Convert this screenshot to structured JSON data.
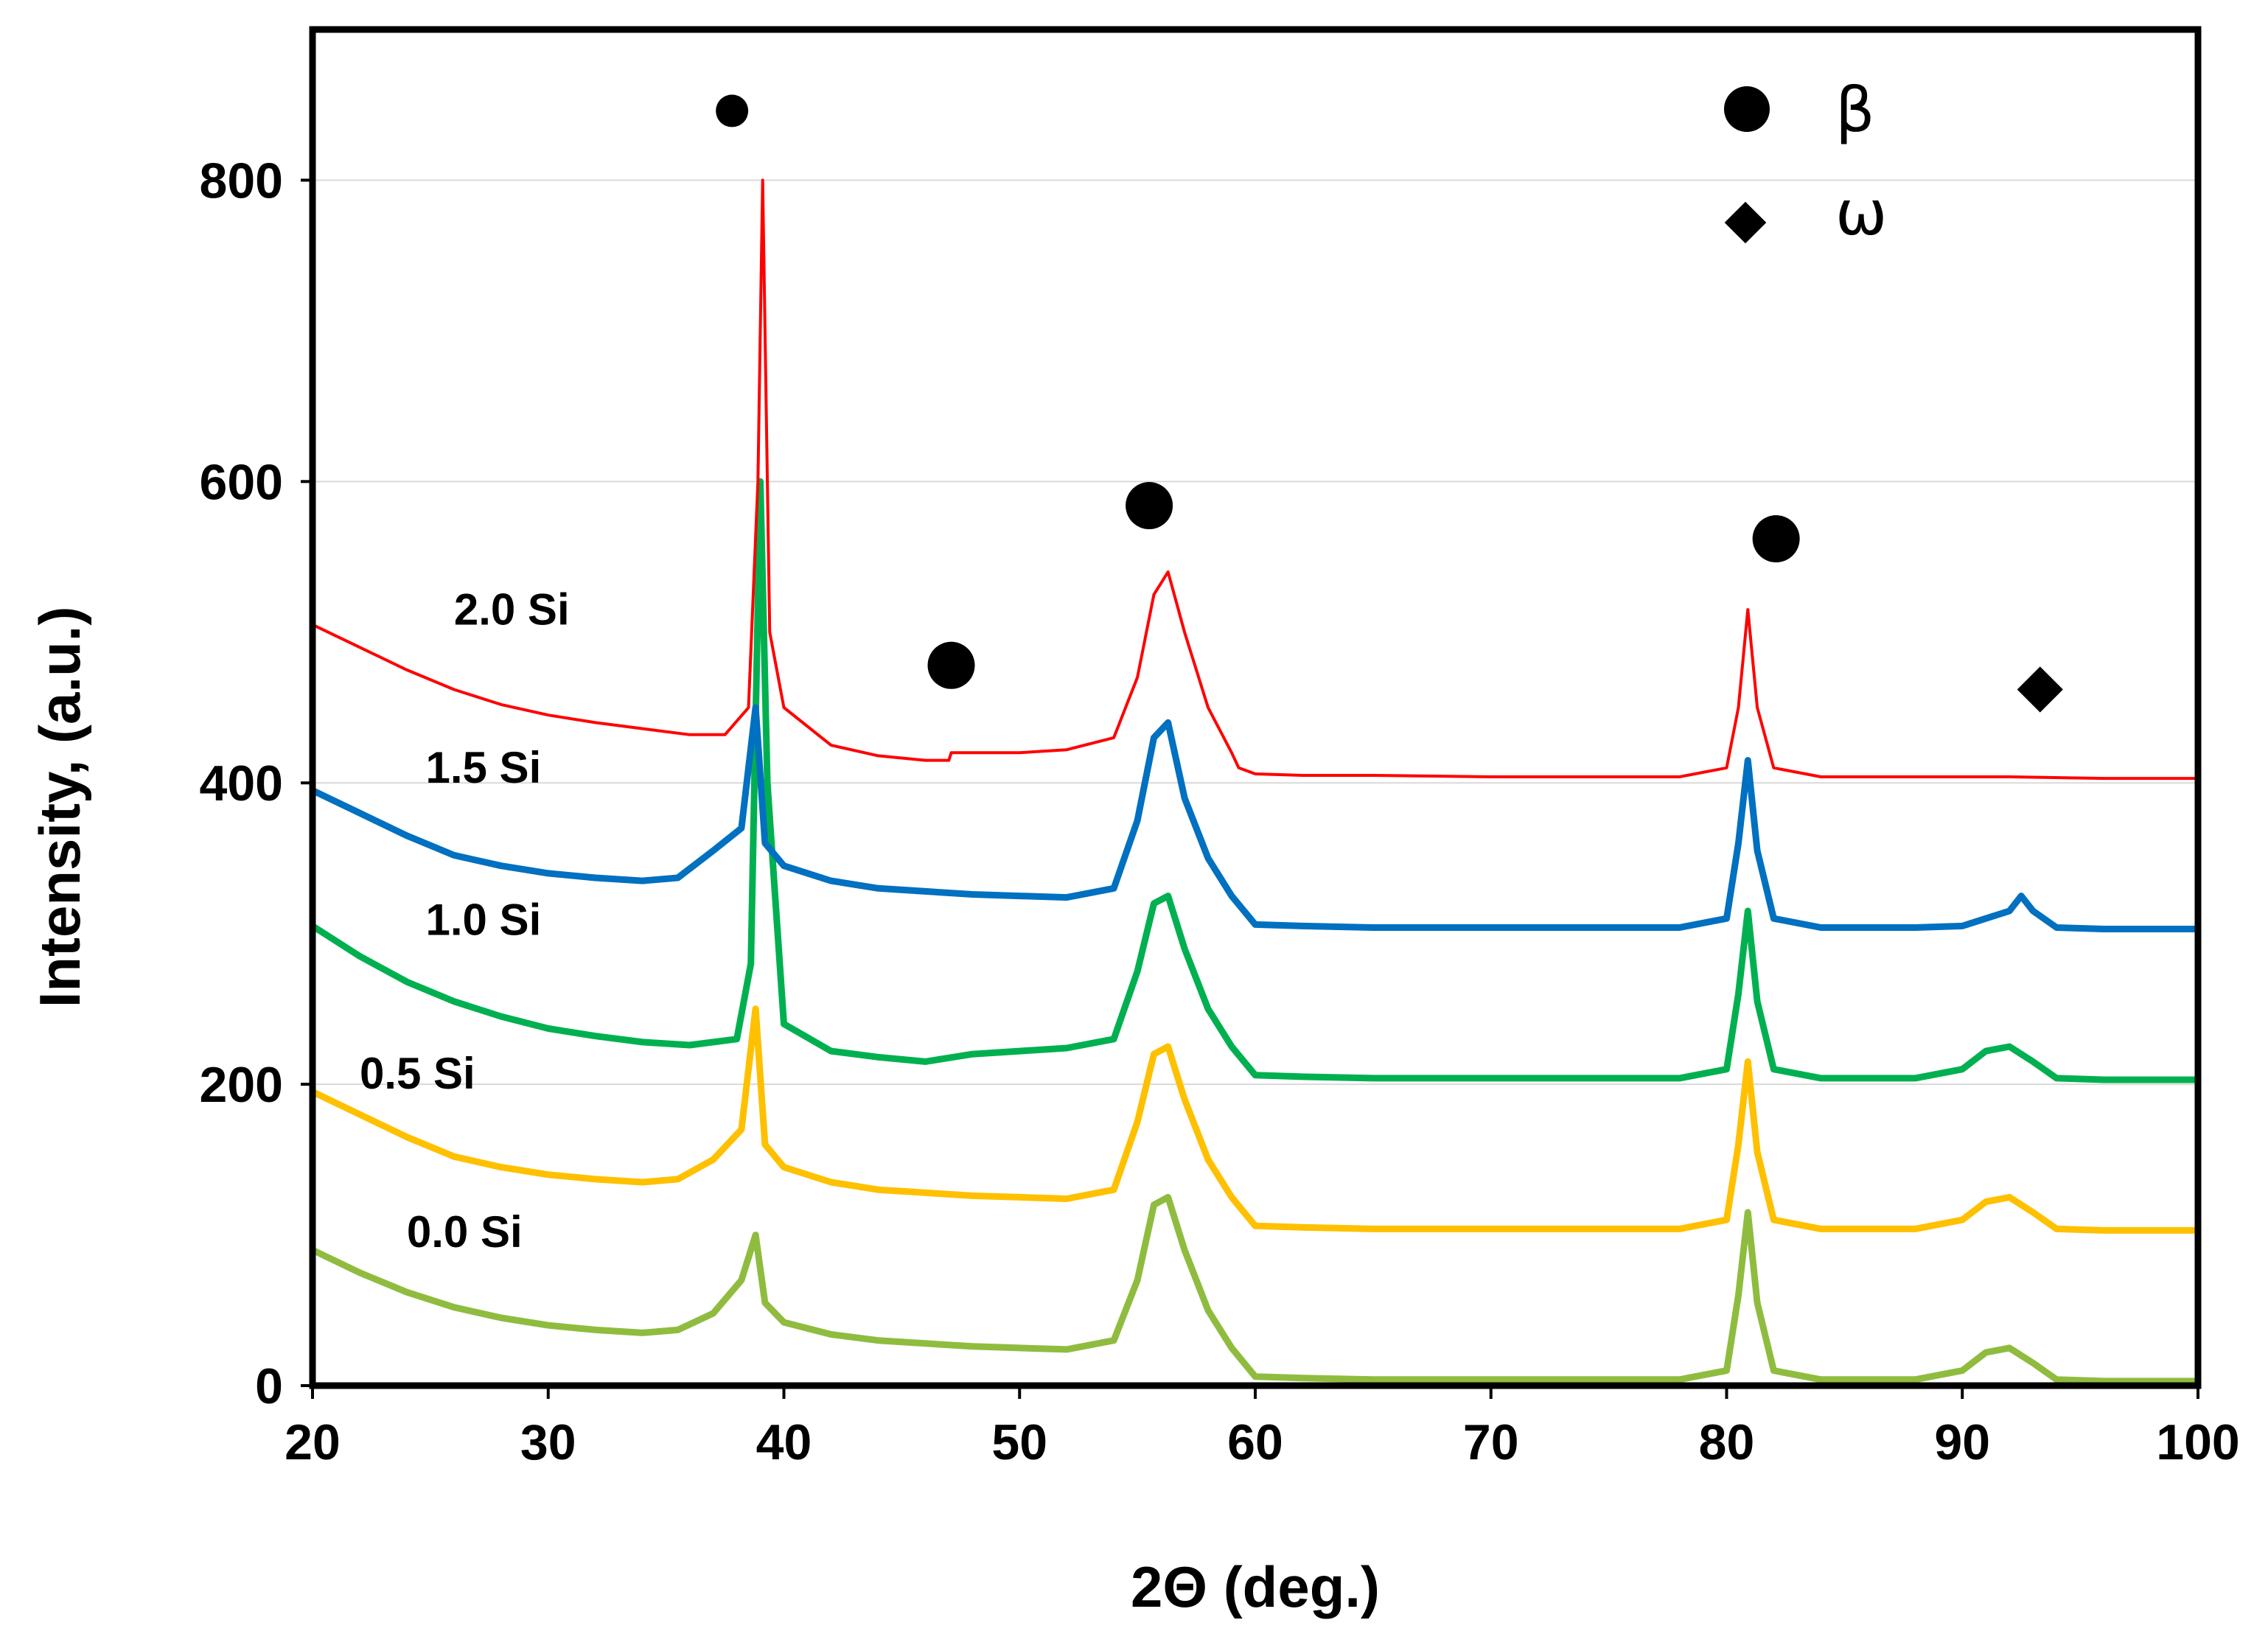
{
  "chart_data": {
    "type": "line",
    "title": "",
    "xlabel": "2Θ (deg.)",
    "ylabel": "Intensity, (a.u.)",
    "xlim": [
      20,
      100
    ],
    "ylim": [
      0,
      900
    ],
    "xticks": [
      "20",
      "30",
      "40",
      "50",
      "60",
      "70",
      "80",
      "90",
      "100"
    ],
    "yticks": [
      "0",
      "200",
      "400",
      "600",
      "800"
    ],
    "grid": true,
    "legend": {
      "position": "top-right",
      "entries": [
        {
          "symbol": "circle",
          "label": "β"
        },
        {
          "symbol": "diamond",
          "label": "ω"
        }
      ]
    },
    "series": [
      {
        "name": "0.0 Si",
        "color": "#8fbc3f",
        "label_at": [
          24,
          92
        ],
        "points": [
          [
            20,
            90
          ],
          [
            22,
            75
          ],
          [
            24,
            62
          ],
          [
            26,
            52
          ],
          [
            28,
            45
          ],
          [
            30,
            40
          ],
          [
            32,
            37
          ],
          [
            34,
            35
          ],
          [
            35.5,
            37
          ],
          [
            37,
            48
          ],
          [
            38.2,
            70
          ],
          [
            38.8,
            100
          ],
          [
            39.2,
            55
          ],
          [
            40,
            42
          ],
          [
            42,
            34
          ],
          [
            44,
            30
          ],
          [
            46,
            28
          ],
          [
            48,
            26
          ],
          [
            50,
            25
          ],
          [
            52,
            24
          ],
          [
            54,
            30
          ],
          [
            55,
            70
          ],
          [
            55.7,
            120
          ],
          [
            56.3,
            125
          ],
          [
            57,
            90
          ],
          [
            58,
            50
          ],
          [
            59,
            25
          ],
          [
            60,
            6
          ],
          [
            62,
            5
          ],
          [
            65,
            4
          ],
          [
            70,
            4
          ],
          [
            75,
            4
          ],
          [
            78,
            4
          ],
          [
            80,
            10
          ],
          [
            80.5,
            60
          ],
          [
            80.9,
            115
          ],
          [
            81.3,
            55
          ],
          [
            82,
            10
          ],
          [
            84,
            4
          ],
          [
            88,
            4
          ],
          [
            90,
            10
          ],
          [
            91,
            22
          ],
          [
            92,
            25
          ],
          [
            93,
            15
          ],
          [
            94,
            4
          ],
          [
            96,
            3
          ],
          [
            100,
            3
          ]
        ]
      },
      {
        "name": "0.5 Si",
        "color": "#ffc000",
        "label_at": [
          22,
          197
        ],
        "points": [
          [
            20,
            195
          ],
          [
            22,
            180
          ],
          [
            24,
            165
          ],
          [
            26,
            152
          ],
          [
            28,
            145
          ],
          [
            30,
            140
          ],
          [
            32,
            137
          ],
          [
            34,
            135
          ],
          [
            35.5,
            137
          ],
          [
            37,
            150
          ],
          [
            38.2,
            170
          ],
          [
            38.8,
            250
          ],
          [
            39.2,
            160
          ],
          [
            40,
            145
          ],
          [
            42,
            135
          ],
          [
            44,
            130
          ],
          [
            46,
            128
          ],
          [
            48,
            126
          ],
          [
            50,
            125
          ],
          [
            52,
            124
          ],
          [
            54,
            130
          ],
          [
            55,
            175
          ],
          [
            55.7,
            220
          ],
          [
            56.3,
            225
          ],
          [
            57,
            190
          ],
          [
            58,
            150
          ],
          [
            59,
            125
          ],
          [
            60,
            106
          ],
          [
            62,
            105
          ],
          [
            65,
            104
          ],
          [
            70,
            104
          ],
          [
            75,
            104
          ],
          [
            78,
            104
          ],
          [
            80,
            110
          ],
          [
            80.5,
            160
          ],
          [
            80.9,
            215
          ],
          [
            81.3,
            155
          ],
          [
            82,
            110
          ],
          [
            84,
            104
          ],
          [
            88,
            104
          ],
          [
            90,
            110
          ],
          [
            91,
            122
          ],
          [
            92,
            125
          ],
          [
            93,
            115
          ],
          [
            94,
            104
          ],
          [
            96,
            103
          ],
          [
            100,
            103
          ]
        ]
      },
      {
        "name": "1.0 Si",
        "color": "#00b050",
        "label_at": [
          24.8,
          299
        ],
        "points": [
          [
            20,
            305
          ],
          [
            22,
            285
          ],
          [
            24,
            268
          ],
          [
            26,
            255
          ],
          [
            28,
            245
          ],
          [
            30,
            237
          ],
          [
            32,
            232
          ],
          [
            34,
            228
          ],
          [
            36,
            226
          ],
          [
            38,
            230
          ],
          [
            38.6,
            280
          ],
          [
            39,
            600
          ],
          [
            39.3,
            400
          ],
          [
            40,
            240
          ],
          [
            42,
            222
          ],
          [
            44,
            218
          ],
          [
            46,
            215
          ],
          [
            48,
            220
          ],
          [
            50,
            222
          ],
          [
            52,
            224
          ],
          [
            54,
            230
          ],
          [
            55,
            275
          ],
          [
            55.7,
            320
          ],
          [
            56.3,
            325
          ],
          [
            57,
            290
          ],
          [
            58,
            250
          ],
          [
            59,
            225
          ],
          [
            60,
            206
          ],
          [
            62,
            205
          ],
          [
            65,
            204
          ],
          [
            70,
            204
          ],
          [
            75,
            204
          ],
          [
            78,
            204
          ],
          [
            80,
            210
          ],
          [
            80.5,
            260
          ],
          [
            80.9,
            315
          ],
          [
            81.3,
            255
          ],
          [
            82,
            210
          ],
          [
            84,
            204
          ],
          [
            88,
            204
          ],
          [
            90,
            210
          ],
          [
            91,
            222
          ],
          [
            92,
            225
          ],
          [
            93,
            215
          ],
          [
            94,
            204
          ],
          [
            96,
            203
          ],
          [
            100,
            203
          ]
        ]
      },
      {
        "name": "1.5 Si",
        "color": "#0070c0",
        "label_at": [
          24.8,
          400
        ],
        "points": [
          [
            20,
            395
          ],
          [
            22,
            380
          ],
          [
            24,
            365
          ],
          [
            26,
            352
          ],
          [
            28,
            345
          ],
          [
            30,
            340
          ],
          [
            32,
            337
          ],
          [
            34,
            335
          ],
          [
            35.5,
            337
          ],
          [
            37,
            355
          ],
          [
            38.2,
            370
          ],
          [
            38.8,
            450
          ],
          [
            39.2,
            360
          ],
          [
            40,
            345
          ],
          [
            42,
            335
          ],
          [
            44,
            330
          ],
          [
            46,
            328
          ],
          [
            48,
            326
          ],
          [
            50,
            325
          ],
          [
            52,
            324
          ],
          [
            54,
            330
          ],
          [
            55,
            375
          ],
          [
            55.7,
            430
          ],
          [
            56.3,
            440
          ],
          [
            57,
            390
          ],
          [
            58,
            350
          ],
          [
            59,
            325
          ],
          [
            60,
            306
          ],
          [
            62,
            305
          ],
          [
            65,
            304
          ],
          [
            70,
            304
          ],
          [
            75,
            304
          ],
          [
            78,
            304
          ],
          [
            80,
            310
          ],
          [
            80.5,
            360
          ],
          [
            80.9,
            415
          ],
          [
            81.3,
            355
          ],
          [
            82,
            310
          ],
          [
            84,
            304
          ],
          [
            88,
            304
          ],
          [
            90,
            305
          ],
          [
            91,
            310
          ],
          [
            92,
            315
          ],
          [
            92.5,
            325
          ],
          [
            93,
            315
          ],
          [
            94,
            304
          ],
          [
            96,
            303
          ],
          [
            100,
            303
          ]
        ]
      },
      {
        "name": "2.0 Si",
        "color": "#ff0000",
        "label_at": [
          26,
          505
        ],
        "points": [
          [
            20,
            505
          ],
          [
            22,
            490
          ],
          [
            24,
            475
          ],
          [
            26,
            462
          ],
          [
            28,
            452
          ],
          [
            30,
            445
          ],
          [
            32,
            440
          ],
          [
            34,
            436
          ],
          [
            36,
            432
          ],
          [
            37.5,
            432
          ],
          [
            38.5,
            450
          ],
          [
            38.9,
            600
          ],
          [
            39.1,
            800
          ],
          [
            39.4,
            500
          ],
          [
            40,
            450
          ],
          [
            42,
            425
          ],
          [
            44,
            418
          ],
          [
            46,
            415
          ],
          [
            47,
            415
          ],
          [
            47.1,
            420
          ],
          [
            50,
            420
          ],
          [
            52,
            422
          ],
          [
            54,
            430
          ],
          [
            55,
            470
          ],
          [
            55.7,
            525
          ],
          [
            56.3,
            540
          ],
          [
            57,
            500
          ],
          [
            58,
            450
          ],
          [
            59,
            420
          ],
          [
            59.3,
            410
          ],
          [
            60,
            406
          ],
          [
            62,
            405
          ],
          [
            65,
            405
          ],
          [
            70,
            404
          ],
          [
            75,
            404
          ],
          [
            78,
            404
          ],
          [
            80,
            410
          ],
          [
            80.5,
            450
          ],
          [
            80.9,
            515
          ],
          [
            81.3,
            450
          ],
          [
            82,
            410
          ],
          [
            84,
            404
          ],
          [
            88,
            404
          ],
          [
            90,
            404
          ],
          [
            92,
            404
          ],
          [
            96,
            403
          ],
          [
            100,
            403
          ]
        ]
      }
    ],
    "markers": [
      {
        "symbol": "circle",
        "x": 37.8,
        "y": 846
      },
      {
        "symbol": "circle",
        "x": 47.1,
        "y": 478
      },
      {
        "symbol": "circle",
        "x": 55.5,
        "y": 584
      },
      {
        "symbol": "circle",
        "x": 82.1,
        "y": 562
      },
      {
        "symbol": "diamond",
        "x": 93.3,
        "y": 462
      }
    ]
  }
}
